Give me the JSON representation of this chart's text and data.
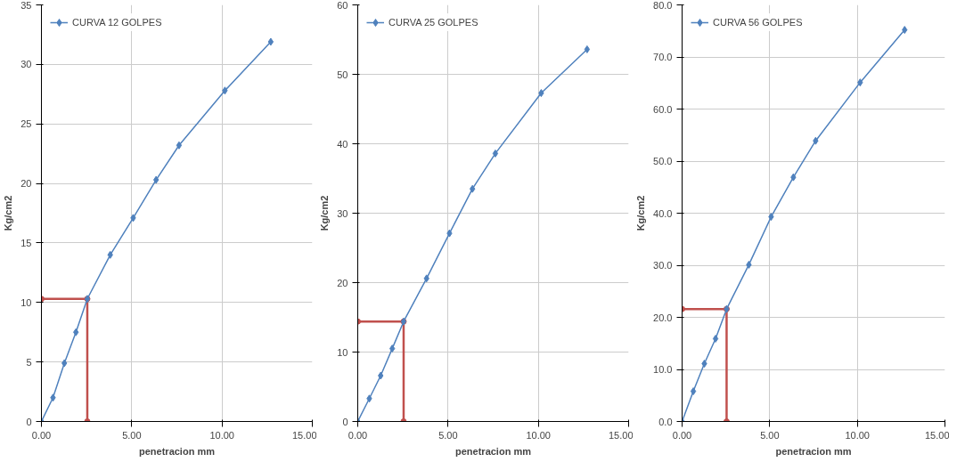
{
  "chart_data": [
    {
      "type": "line",
      "xlabel": "penetracion mm",
      "ylabel": "Kg/cm2",
      "xlim": [
        0,
        15
      ],
      "xticks": [
        {
          "value": 0,
          "label": "0.00"
        },
        {
          "value": 5,
          "label": "5.00"
        },
        {
          "value": 10,
          "label": "10.00"
        },
        {
          "value": 15,
          "label": "15.00"
        }
      ],
      "ylim": [
        0,
        35
      ],
      "yticks": [
        0,
        5,
        10,
        15,
        20,
        25,
        30,
        35
      ],
      "grid": true,
      "legend": "top left",
      "marker": "diamond",
      "series": [
        {
          "name": "CURVA 12 GOLPES",
          "color": "#4f81bd",
          "x": [
            0,
            0.64,
            1.27,
            1.91,
            2.54,
            3.81,
            5.08,
            6.35,
            7.62,
            10.16,
            12.7
          ],
          "values": [
            0,
            2.0,
            4.9,
            7.5,
            10.3,
            14.0,
            17.1,
            20.3,
            23.2,
            27.8,
            31.9
          ]
        },
        {
          "color": "#c0504d",
          "marker": "circle",
          "x": [
            0,
            2.54,
            2.54
          ],
          "values": [
            10.3,
            10.3,
            0
          ]
        }
      ]
    },
    {
      "type": "line",
      "xlabel": "penetracion mm",
      "ylabel": "Kg/cm2",
      "xlim": [
        0,
        15
      ],
      "xticks": [
        {
          "value": 0,
          "label": "0.00"
        },
        {
          "value": 5,
          "label": "5.00"
        },
        {
          "value": 10,
          "label": "10.00"
        },
        {
          "value": 15,
          "label": "15.00"
        }
      ],
      "ylim": [
        0,
        60
      ],
      "yticks": [
        0,
        10,
        20,
        30,
        40,
        50,
        60
      ],
      "grid": true,
      "legend": "top left",
      "marker": "diamond",
      "series": [
        {
          "name": "CURVA 25 GOLPES",
          "color": "#4f81bd",
          "x": [
            0,
            0.64,
            1.27,
            1.91,
            2.54,
            3.81,
            5.08,
            6.35,
            7.62,
            10.16,
            12.7
          ],
          "values": [
            0,
            3.3,
            6.6,
            10.5,
            14.4,
            20.6,
            27.1,
            33.5,
            38.6,
            47.3,
            53.6
          ]
        },
        {
          "color": "#c0504d",
          "marker": "circle",
          "x": [
            0,
            2.54,
            2.54
          ],
          "values": [
            14.4,
            14.4,
            0
          ]
        }
      ]
    },
    {
      "type": "line",
      "xlabel": "penetracion mm",
      "ylabel": "Kg/cm2",
      "xlim": [
        0,
        15
      ],
      "xticks": [
        {
          "value": 0,
          "label": "0.00"
        },
        {
          "value": 5,
          "label": "5.00"
        },
        {
          "value": 10,
          "label": "10.00"
        },
        {
          "value": 15,
          "label": "15.00"
        }
      ],
      "ylim": [
        0,
        80
      ],
      "yticks": [
        {
          "value": 0,
          "label": "0.0"
        },
        {
          "value": 10,
          "label": "10.0"
        },
        {
          "value": 20,
          "label": "20.0"
        },
        {
          "value": 30,
          "label": "30.0"
        },
        {
          "value": 40,
          "label": "40.0"
        },
        {
          "value": 50,
          "label": "50.0"
        },
        {
          "value": 60,
          "label": "60.0"
        },
        {
          "value": 70,
          "label": "70.0"
        },
        {
          "value": 80,
          "label": "80.0"
        }
      ],
      "grid": true,
      "legend": "top left",
      "marker": "diamond",
      "series": [
        {
          "name": "CURVA 56 GOLPES",
          "color": "#4f81bd",
          "x": [
            0,
            0.64,
            1.27,
            1.91,
            2.54,
            3.81,
            5.08,
            6.35,
            7.62,
            10.16,
            12.7
          ],
          "values": [
            0,
            5.8,
            11.1,
            15.9,
            21.6,
            30.1,
            39.3,
            46.9,
            53.9,
            65.1,
            75.2
          ]
        },
        {
          "color": "#c0504d",
          "marker": "circle",
          "x": [
            0,
            2.54,
            2.54
          ],
          "values": [
            21.6,
            21.6,
            0
          ]
        }
      ]
    }
  ]
}
